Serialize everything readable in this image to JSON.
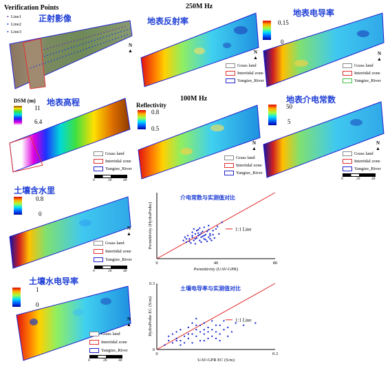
{
  "headers": {
    "freq_250": "250M Hz",
    "freq_100": "100M Hz"
  },
  "ortho": {
    "title_en": "Verification Points",
    "title_cn": "正射影像",
    "lines": [
      {
        "label": "Line1",
        "color": "#6a2fb0"
      },
      {
        "label": "Line2",
        "color": "#1c3fd0"
      },
      {
        "label": "Line3",
        "color": "#1c3fd0"
      }
    ]
  },
  "panels": {
    "refl_250": {
      "title_cn": "地表反射率"
    },
    "ec_250": {
      "title_cn": "地表电导率",
      "cb_max": "0.15",
      "cb_min": "0"
    },
    "dsm": {
      "title_cn": "地表高程",
      "unit": "DSM (m)",
      "cb_max": "11",
      "cb_min": "6.4"
    },
    "refl_100": {
      "unit": "Reflectivity",
      "cb_max": "0.8",
      "cb_min": "0.5"
    },
    "perm": {
      "title_cn": "地表介电常数",
      "cb_max": "50",
      "cb_min": "5"
    },
    "moisture": {
      "title_cn": "土壤含水里",
      "cb_max": "0.8",
      "cb_min": "0"
    },
    "soil_ec": {
      "title_cn": "土壤水电导率",
      "cb_max": "1",
      "cb_min": "0"
    }
  },
  "legend": {
    "grass": "Grass land",
    "intertidal": "Intertidal zone",
    "river": "Yangtze_River",
    "north": "N",
    "scale_ticks": [
      "0",
      "20",
      "40"
    ]
  },
  "colors": {
    "title_blue": "#1f3fd6",
    "grass_border": "#888888",
    "intertidal_border": "#e03030",
    "river_border": "#2020d0",
    "line_red": "#e02020",
    "point_blue": "#1f2fd0"
  },
  "chart_data": [
    {
      "type": "scatter",
      "title": "介电常数与实测值对比",
      "xlabel": "Permittivity (UAV-GPR)",
      "ylabel": "Permittivity (HydraProbe)",
      "xlim": [
        0,
        80
      ],
      "ylim": [
        0,
        80
      ],
      "xticks": [
        "0",
        "40",
        "80"
      ],
      "yticks": [],
      "reference_line": "1:1 Line",
      "points": [
        [
          20,
          20
        ],
        [
          22,
          24
        ],
        [
          24,
          26
        ],
        [
          25,
          22
        ],
        [
          26,
          30
        ],
        [
          27,
          25
        ],
        [
          28,
          28
        ],
        [
          29,
          22
        ],
        [
          30,
          31
        ],
        [
          31,
          27
        ],
        [
          32,
          24
        ],
        [
          33,
          29
        ],
        [
          34,
          33
        ],
        [
          35,
          26
        ],
        [
          36,
          30
        ],
        [
          38,
          34
        ],
        [
          18,
          22
        ],
        [
          21,
          28
        ],
        [
          23,
          19
        ],
        [
          26,
          18
        ],
        [
          28,
          35
        ],
        [
          30,
          20
        ],
        [
          32,
          38
        ],
        [
          35,
          40
        ],
        [
          37,
          22
        ],
        [
          40,
          36
        ],
        [
          42,
          30
        ],
        [
          19,
          26
        ],
        [
          24,
          32
        ],
        [
          27,
          34
        ],
        [
          29,
          29
        ],
        [
          31,
          33
        ],
        [
          33,
          23
        ],
        [
          36,
          28
        ],
        [
          39,
          25
        ],
        [
          41,
          39
        ],
        [
          44,
          44
        ],
        [
          22,
          21
        ],
        [
          25,
          36
        ],
        [
          30,
          26
        ],
        [
          34,
          21
        ],
        [
          38,
          29
        ],
        [
          26,
          24
        ],
        [
          28,
          31
        ],
        [
          32,
          28
        ],
        [
          35,
          35
        ],
        [
          29,
          37
        ],
        [
          24,
          28
        ],
        [
          20,
          24
        ],
        [
          36,
          24
        ]
      ]
    },
    {
      "type": "scatter",
      "title": "土壤电导率与实测值对比",
      "xlabel": "UAV-GPR EC (S/m)",
      "ylabel": "HydraProbe EC (S/m)",
      "xlim": [
        0,
        0.3
      ],
      "ylim": [
        0,
        0.3
      ],
      "xticks": [
        "0",
        "0.3"
      ],
      "yticks": [
        "0",
        "0.3"
      ],
      "reference_line": "1:1 Line",
      "points": [
        [
          0.02,
          0.02
        ],
        [
          0.03,
          0.04
        ],
        [
          0.04,
          0.03
        ],
        [
          0.05,
          0.05
        ],
        [
          0.06,
          0.04
        ],
        [
          0.07,
          0.06
        ],
        [
          0.08,
          0.05
        ],
        [
          0.09,
          0.07
        ],
        [
          0.1,
          0.06
        ],
        [
          0.11,
          0.08
        ],
        [
          0.12,
          0.07
        ],
        [
          0.13,
          0.1
        ],
        [
          0.14,
          0.09
        ],
        [
          0.15,
          0.08
        ],
        [
          0.16,
          0.11
        ],
        [
          0.18,
          0.1
        ],
        [
          0.2,
          0.12
        ],
        [
          0.22,
          0.11
        ],
        [
          0.25,
          0.12
        ],
        [
          0.03,
          0.06
        ],
        [
          0.05,
          0.08
        ],
        [
          0.06,
          0.02
        ],
        [
          0.08,
          0.1
        ],
        [
          0.09,
          0.03
        ],
        [
          0.1,
          0.09
        ],
        [
          0.11,
          0.04
        ],
        [
          0.12,
          0.12
        ],
        [
          0.13,
          0.05
        ],
        [
          0.14,
          0.13
        ],
        [
          0.15,
          0.05
        ],
        [
          0.16,
          0.07
        ],
        [
          0.17,
          0.13
        ],
        [
          0.19,
          0.08
        ],
        [
          0.04,
          0.07
        ],
        [
          0.07,
          0.03
        ],
        [
          0.09,
          0.12
        ],
        [
          0.1,
          0.14
        ],
        [
          0.11,
          0.11
        ],
        [
          0.12,
          0.04
        ],
        [
          0.13,
          0.08
        ],
        [
          0.14,
          0.06
        ],
        [
          0.16,
          0.04
        ],
        [
          0.18,
          0.06
        ],
        [
          0.06,
          0.09
        ],
        [
          0.08,
          0.07
        ],
        [
          0.1,
          0.11
        ],
        [
          0.12,
          0.09
        ],
        [
          0.15,
          0.11
        ],
        [
          0.17,
          0.09
        ],
        [
          0.05,
          0.04
        ]
      ]
    }
  ]
}
